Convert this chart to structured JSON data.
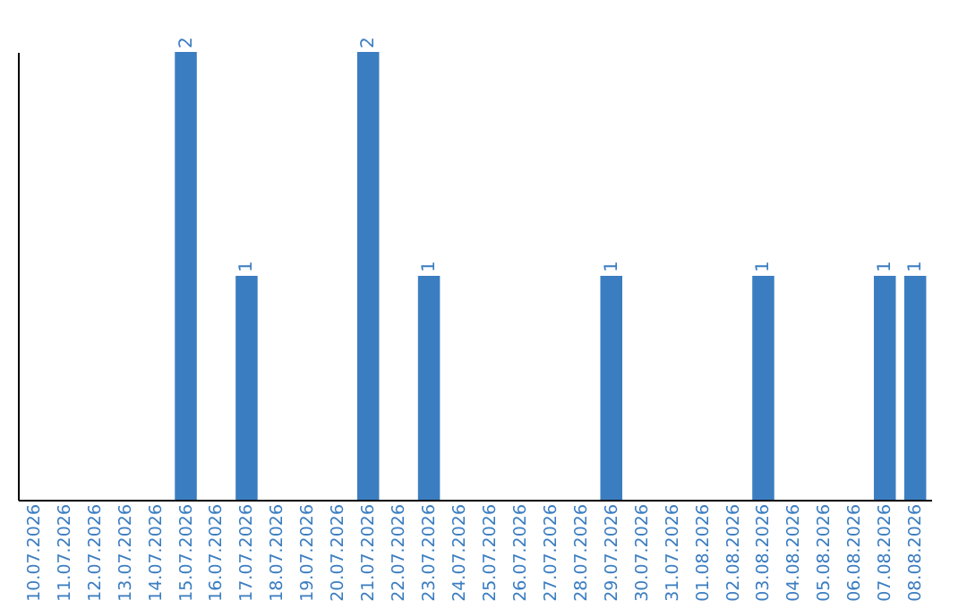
{
  "chart_data": {
    "type": "bar",
    "categories": [
      "10.07.2026",
      "11.07.2026",
      "12.07.2026",
      "13.07.2026",
      "14.07.2026",
      "15.07.2026",
      "16.07.2026",
      "17.07.2026",
      "18.07.2026",
      "19.07.2026",
      "20.07.2026",
      "21.07.2026",
      "22.07.2026",
      "23.07.2026",
      "24.07.2026",
      "25.07.2026",
      "26.07.2026",
      "27.07.2026",
      "28.07.2026",
      "29.07.2026",
      "30.07.2026",
      "31.07.2026",
      "01.08.2026",
      "02.08.2026",
      "03.08.2026",
      "04.08.2026",
      "05.08.2026",
      "06.08.2026",
      "07.08.2026",
      "08.08.2026"
    ],
    "values": [
      0,
      0,
      0,
      0,
      0,
      2,
      0,
      1,
      0,
      0,
      0,
      2,
      0,
      1,
      0,
      0,
      0,
      0,
      0,
      1,
      0,
      0,
      0,
      0,
      1,
      0,
      0,
      0,
      1,
      1
    ],
    "value_labels": [
      null,
      null,
      null,
      null,
      null,
      "2",
      null,
      "1",
      null,
      null,
      null,
      "2",
      null,
      "1",
      null,
      null,
      null,
      null,
      null,
      "1",
      null,
      null,
      null,
      null,
      "1",
      null,
      null,
      null,
      "1",
      "1"
    ],
    "color": "#3b7dc1"
  }
}
